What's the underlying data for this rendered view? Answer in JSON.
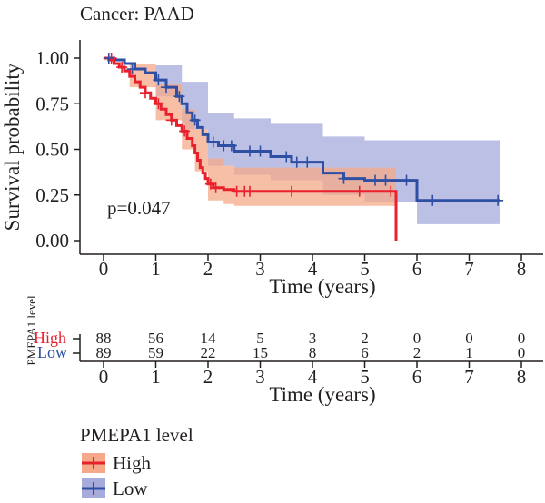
{
  "chart_data": {
    "type": "line",
    "subtype": "kaplan-meier",
    "title": "Cancer: PAAD",
    "xlabel": "Time (years)",
    "ylabel": "Survival probability",
    "xlim": [
      0,
      8
    ],
    "ylim": [
      0,
      1
    ],
    "x_ticks": [
      "0",
      "1",
      "2",
      "3",
      "4",
      "5",
      "6",
      "7",
      "8"
    ],
    "y_ticks": [
      "0.00",
      "0.25",
      "0.50",
      "0.75",
      "1.00"
    ],
    "annotation": "p=0.047",
    "colors": {
      "High": "#e8212d",
      "Low": "#2e4fa3",
      "High_ci": "#f5a98a",
      "Low_ci": "#a6abdb"
    },
    "series": [
      {
        "name": "High",
        "steps": [
          [
            0,
            1.0
          ],
          [
            0.1,
            0.99
          ],
          [
            0.2,
            0.97
          ],
          [
            0.3,
            0.95
          ],
          [
            0.4,
            0.93
          ],
          [
            0.5,
            0.9
          ],
          [
            0.6,
            0.87
          ],
          [
            0.7,
            0.84
          ],
          [
            0.8,
            0.81
          ],
          [
            0.9,
            0.78
          ],
          [
            1.0,
            0.75
          ],
          [
            1.1,
            0.72
          ],
          [
            1.2,
            0.69
          ],
          [
            1.3,
            0.66
          ],
          [
            1.4,
            0.63
          ],
          [
            1.5,
            0.6
          ],
          [
            1.6,
            0.56
          ],
          [
            1.7,
            0.52
          ],
          [
            1.75,
            0.48
          ],
          [
            1.8,
            0.44
          ],
          [
            1.85,
            0.4
          ],
          [
            1.9,
            0.37
          ],
          [
            1.95,
            0.34
          ],
          [
            2.0,
            0.31
          ],
          [
            2.1,
            0.29
          ],
          [
            2.3,
            0.28
          ],
          [
            2.5,
            0.27
          ],
          [
            5.6,
            0.0
          ]
        ],
        "censor": [
          [
            0.15,
            1.0
          ],
          [
            0.35,
            0.95
          ],
          [
            0.8,
            0.81
          ],
          [
            1.05,
            0.75
          ],
          [
            1.3,
            0.66
          ],
          [
            1.55,
            0.6
          ],
          [
            2.05,
            0.31
          ],
          [
            2.15,
            0.29
          ],
          [
            2.55,
            0.27
          ],
          [
            2.7,
            0.27
          ],
          [
            2.8,
            0.27
          ],
          [
            3.6,
            0.27
          ],
          [
            4.9,
            0.27
          ],
          [
            5.5,
            0.27
          ]
        ],
        "ci_upper": [
          [
            0,
            1.0
          ],
          [
            0.5,
            0.97
          ],
          [
            1.0,
            0.86
          ],
          [
            1.5,
            0.72
          ],
          [
            1.75,
            0.61
          ],
          [
            2.0,
            0.45
          ],
          [
            2.3,
            0.41
          ],
          [
            2.5,
            0.4
          ],
          [
            5.6,
            0.4
          ]
        ],
        "ci_lower": [
          [
            0,
            1.0
          ],
          [
            0.5,
            0.84
          ],
          [
            1.0,
            0.66
          ],
          [
            1.5,
            0.5
          ],
          [
            1.75,
            0.38
          ],
          [
            2.0,
            0.22
          ],
          [
            2.3,
            0.2
          ],
          [
            2.5,
            0.19
          ],
          [
            5.6,
            0.19
          ]
        ]
      },
      {
        "name": "Low",
        "steps": [
          [
            0,
            1.0
          ],
          [
            0.2,
            0.99
          ],
          [
            0.4,
            0.97
          ],
          [
            0.6,
            0.94
          ],
          [
            0.8,
            0.92
          ],
          [
            1.0,
            0.88
          ],
          [
            1.2,
            0.84
          ],
          [
            1.4,
            0.79
          ],
          [
            1.5,
            0.75
          ],
          [
            1.6,
            0.7
          ],
          [
            1.7,
            0.66
          ],
          [
            1.8,
            0.62
          ],
          [
            1.9,
            0.58
          ],
          [
            2.0,
            0.54
          ],
          [
            2.2,
            0.52
          ],
          [
            2.5,
            0.49
          ],
          [
            3.2,
            0.46
          ],
          [
            3.6,
            0.43
          ],
          [
            4.2,
            0.37
          ],
          [
            4.6,
            0.34
          ],
          [
            5.0,
            0.33
          ],
          [
            6.0,
            0.22
          ],
          [
            7.6,
            0.22
          ]
        ],
        "censor": [
          [
            0.1,
            1.0
          ],
          [
            0.55,
            0.94
          ],
          [
            1.05,
            0.88
          ],
          [
            1.2,
            0.84
          ],
          [
            1.45,
            0.79
          ],
          [
            1.75,
            0.66
          ],
          [
            2.1,
            0.54
          ],
          [
            2.3,
            0.52
          ],
          [
            2.45,
            0.52
          ],
          [
            2.8,
            0.49
          ],
          [
            3.0,
            0.49
          ],
          [
            3.5,
            0.46
          ],
          [
            3.7,
            0.43
          ],
          [
            3.9,
            0.43
          ],
          [
            4.6,
            0.34
          ],
          [
            5.2,
            0.33
          ],
          [
            5.4,
            0.33
          ],
          [
            5.8,
            0.33
          ],
          [
            6.3,
            0.22
          ],
          [
            7.55,
            0.22
          ]
        ],
        "ci_upper": [
          [
            0,
            1.0
          ],
          [
            1.0,
            0.96
          ],
          [
            1.5,
            0.87
          ],
          [
            2.0,
            0.7
          ],
          [
            2.5,
            0.67
          ],
          [
            3.2,
            0.64
          ],
          [
            4.2,
            0.57
          ],
          [
            5.0,
            0.55
          ],
          [
            6.0,
            0.55
          ],
          [
            7.6,
            0.55
          ]
        ],
        "ci_lower": [
          [
            0,
            1.0
          ],
          [
            1.0,
            0.79
          ],
          [
            1.5,
            0.61
          ],
          [
            2.0,
            0.41
          ],
          [
            2.5,
            0.36
          ],
          [
            3.2,
            0.33
          ],
          [
            4.2,
            0.25
          ],
          [
            5.0,
            0.21
          ],
          [
            6.0,
            0.09
          ],
          [
            7.6,
            0.09
          ]
        ]
      }
    ]
  },
  "risk_table": {
    "ylabel": "PMEPA1 level",
    "xlabel": "Time (years)",
    "times": [
      "0",
      "1",
      "2",
      "3",
      "4",
      "5",
      "6",
      "7",
      "8"
    ],
    "rows": [
      {
        "name": "High",
        "counts": [
          "88",
          "56",
          "14",
          "5",
          "3",
          "2",
          "0",
          "0",
          "0"
        ]
      },
      {
        "name": "Low",
        "counts": [
          "89",
          "59",
          "22",
          "15",
          "8",
          "6",
          "2",
          "1",
          "0"
        ]
      }
    ]
  },
  "legend": {
    "title": "PMEPA1 level",
    "items": [
      "High",
      "Low"
    ]
  }
}
